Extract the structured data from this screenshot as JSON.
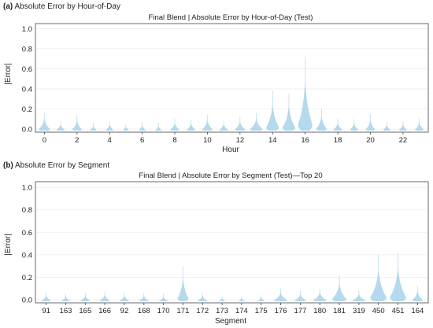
{
  "panels": [
    {
      "letter": "(a)",
      "heading": "Absolute Error by Hour-of-Day"
    },
    {
      "letter": "(b)",
      "heading": "Absolute Error by Segment"
    }
  ],
  "chart_data": [
    {
      "type": "violin",
      "title": "Final Blend | Absolute Error by Hour-of-Day (Test)",
      "xlabel": "Hour",
      "ylabel": "|Error|",
      "ylim": [
        0,
        1.05
      ],
      "yticks": [
        0.0,
        0.2,
        0.4,
        0.6,
        0.8,
        1.0
      ],
      "categories": [
        "0",
        "1",
        "2",
        "3",
        "4",
        "5",
        "6",
        "7",
        "8",
        "9",
        "10",
        "11",
        "12",
        "13",
        "14",
        "15",
        "16",
        "17",
        "18",
        "19",
        "20",
        "21",
        "22",
        "23"
      ],
      "xtick_labels_shown": [
        "0",
        "2",
        "4",
        "6",
        "8",
        "10",
        "12",
        "14",
        "16",
        "18",
        "20",
        "22"
      ],
      "violin_max": [
        0.16,
        0.08,
        0.14,
        0.06,
        0.08,
        0.05,
        0.07,
        0.06,
        0.1,
        0.09,
        0.14,
        0.08,
        0.12,
        0.16,
        0.38,
        0.35,
        0.72,
        0.2,
        0.1,
        0.1,
        0.15,
        0.07,
        0.08,
        0.11
      ],
      "violin_width": [
        0.75,
        0.55,
        0.65,
        0.45,
        0.5,
        0.4,
        0.45,
        0.4,
        0.6,
        0.6,
        0.7,
        0.6,
        0.7,
        0.85,
        0.85,
        0.85,
        0.95,
        0.7,
        0.6,
        0.55,
        0.6,
        0.5,
        0.55,
        0.6
      ],
      "grid": true,
      "color": "#8ec5e4"
    },
    {
      "type": "violin",
      "title": "Final Blend | Absolute Error by Segment (Test)—Top 20",
      "xlabel": "Segment",
      "ylabel": "|Error|",
      "ylim": [
        0,
        1.05
      ],
      "yticks": [
        0.0,
        0.2,
        0.4,
        0.6,
        0.8,
        1.0
      ],
      "categories": [
        "91",
        "163",
        "165",
        "166",
        "92",
        "168",
        "170",
        "171",
        "172",
        "173",
        "174",
        "175",
        "176",
        "177",
        "180",
        "181",
        "319",
        "450",
        "451",
        "164"
      ],
      "xtick_labels_shown": [
        "91",
        "163",
        "165",
        "166",
        "92",
        "168",
        "170",
        "171",
        "172",
        "173",
        "174",
        "175",
        "176",
        "177",
        "180",
        "181",
        "319",
        "450",
        "451",
        "164"
      ],
      "violin_max": [
        0.06,
        0.05,
        0.06,
        0.07,
        0.06,
        0.06,
        0.05,
        0.3,
        0.06,
        0.03,
        0.03,
        0.04,
        0.1,
        0.08,
        0.1,
        0.22,
        0.08,
        0.4,
        0.42,
        0.12
      ],
      "violin_width": [
        0.55,
        0.5,
        0.55,
        0.6,
        0.55,
        0.55,
        0.5,
        0.6,
        0.55,
        0.35,
        0.35,
        0.4,
        0.75,
        0.65,
        0.75,
        0.8,
        0.75,
        0.9,
        0.9,
        0.6
      ],
      "grid": true,
      "color": "#8ec5e4"
    }
  ]
}
